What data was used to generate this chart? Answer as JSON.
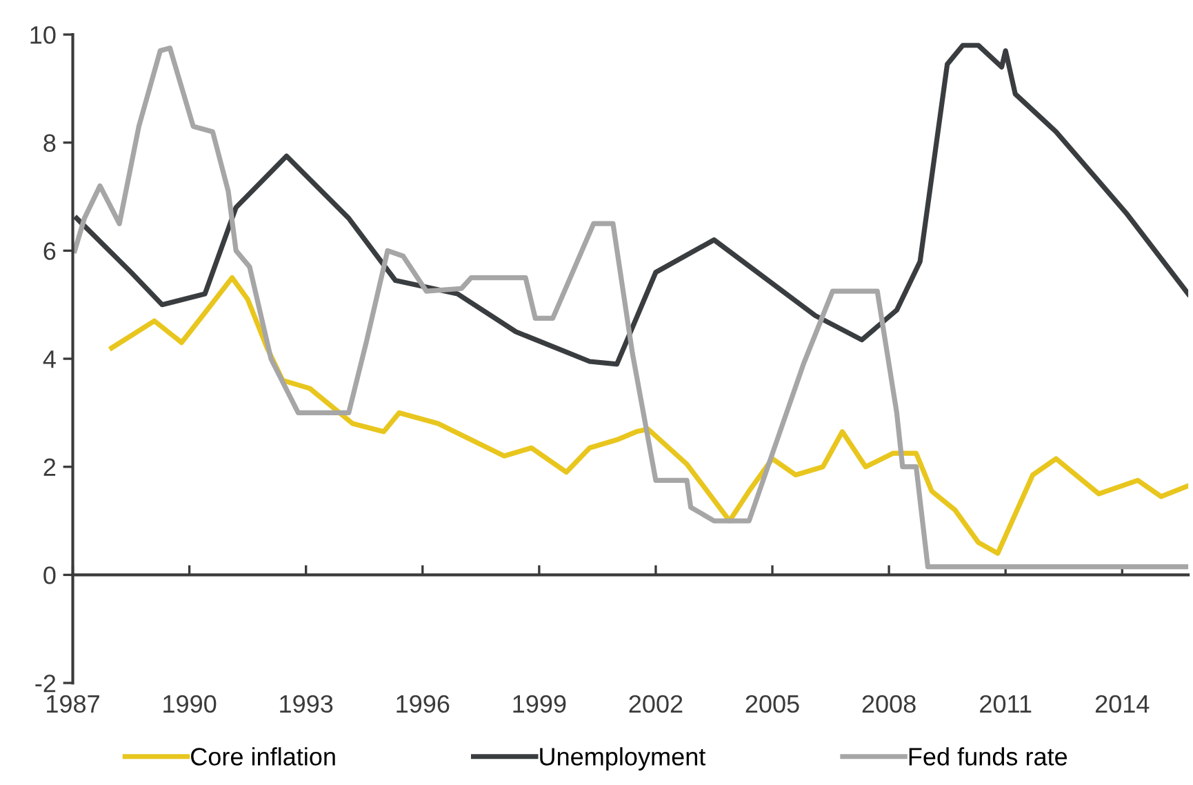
{
  "chart_data": {
    "type": "line",
    "xlim": [
      1987,
      2015.7
    ],
    "xticks": [
      1987,
      1990,
      1993,
      1996,
      1999,
      2002,
      2005,
      2008,
      2011,
      2014
    ],
    "ylim": [
      -2,
      10
    ],
    "yticks": [
      -2,
      0,
      2,
      4,
      6,
      8,
      10
    ],
    "legend": "bottom",
    "marker": "none",
    "line_style": "solid",
    "series": [
      {
        "name": "Core inflation",
        "color": "#e8c61e",
        "x": [
          1988.0,
          1989.1,
          1989.8,
          1990.4,
          1991.1,
          1991.5,
          1992.0,
          1992.4,
          1993.1,
          1994.2,
          1995.0,
          1995.4,
          1996.4,
          1998.1,
          1998.8,
          1999.7,
          2000.3,
          2001.0,
          2001.5,
          2001.8,
          2002.8,
          2003.9,
          2004.4,
          2005.0,
          2005.6,
          2006.3,
          2006.8,
          2007.4,
          2008.1,
          2008.7,
          2009.1,
          2009.7,
          2010.3,
          2010.8,
          2011.7,
          2012.3,
          2013.4,
          2014.4,
          2015.0,
          2015.7
        ],
        "values": [
          4.2,
          4.7,
          4.3,
          4.85,
          5.5,
          5.1,
          4.2,
          3.6,
          3.45,
          2.8,
          2.65,
          3.0,
          2.8,
          2.2,
          2.35,
          1.9,
          2.35,
          2.5,
          2.65,
          2.7,
          2.05,
          1.0,
          1.55,
          2.15,
          1.85,
          2.0,
          2.65,
          2.0,
          2.25,
          2.25,
          1.55,
          1.2,
          0.6,
          0.4,
          1.85,
          2.15,
          1.5,
          1.75,
          1.45,
          1.65
        ]
      },
      {
        "name": "Unemployment",
        "color": "#3a3d3f",
        "x": [
          1987.1,
          1988.5,
          1989.3,
          1990.4,
          1991.2,
          1992.5,
          1994.1,
          1995.3,
          1996.9,
          1998.4,
          2000.3,
          2001.0,
          2002.0,
          2003.5,
          2006.1,
          2007.3,
          2008.2,
          2008.8,
          2009.5,
          2009.9,
          2010.3,
          2010.9,
          2011.0,
          2011.25,
          2012.3,
          2014.1,
          2015.7
        ],
        "values": [
          6.6,
          5.6,
          5.0,
          5.2,
          6.8,
          7.75,
          6.6,
          5.45,
          5.2,
          4.5,
          3.95,
          3.9,
          5.6,
          6.2,
          4.8,
          4.35,
          4.9,
          5.8,
          9.45,
          9.8,
          9.8,
          9.4,
          9.7,
          8.9,
          8.2,
          6.7,
          5.2
        ]
      },
      {
        "name": "Fed funds rate",
        "color": "#a6a6a6",
        "x": [
          1987.05,
          1987.3,
          1987.7,
          1988.2,
          1988.7,
          1989.25,
          1989.5,
          1990.1,
          1990.6,
          1991.0,
          1991.2,
          1991.55,
          1992.1,
          1992.8,
          1994.1,
          1994.55,
          1995.1,
          1995.5,
          1996.1,
          1997.0,
          1997.25,
          1998.65,
          1998.9,
          1999.35,
          2000.4,
          2000.9,
          2001.4,
          2002.0,
          2002.8,
          2002.9,
          2003.5,
          2004.4,
          2005.8,
          2006.55,
          2007.7,
          2008.2,
          2008.35,
          2008.7,
          2009.0,
          2015.7
        ],
        "values": [
          6.0,
          6.6,
          7.2,
          6.5,
          8.3,
          9.7,
          9.75,
          8.3,
          8.2,
          7.1,
          6.0,
          5.7,
          4.0,
          3.0,
          3.0,
          4.3,
          6.0,
          5.9,
          5.25,
          5.3,
          5.5,
          5.5,
          4.75,
          4.75,
          6.5,
          6.5,
          4.1,
          1.75,
          1.75,
          1.25,
          1.0,
          1.0,
          3.9,
          5.25,
          5.25,
          3.0,
          2.0,
          2.0,
          0.15,
          0.15
        ]
      }
    ]
  }
}
